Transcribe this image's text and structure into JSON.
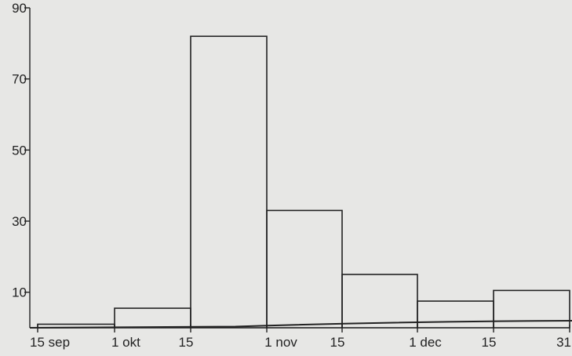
{
  "chart_data": {
    "type": "bar",
    "title": "",
    "xlabel": "",
    "ylabel": "",
    "ylim": [
      0,
      90
    ],
    "y_ticks": [
      "10",
      "30",
      "50",
      "70",
      "90"
    ],
    "y_tick_values": [
      10,
      30,
      50,
      70,
      90
    ],
    "x_tick_labels": [
      "15 sep",
      "1 okt",
      "15",
      "1 nov",
      "15",
      "1 dec",
      "15",
      "31"
    ],
    "categories": [
      "15 sep – 1 okt",
      "1 okt – 15 okt",
      "15 okt – 1 nov",
      "1 nov – 15 nov",
      "15 nov – 1 dec",
      "1 dec – 15 dec",
      "15 dec – 31 dec"
    ],
    "values": [
      1,
      5.5,
      82,
      33,
      15,
      7.5,
      10.5
    ],
    "grid": false,
    "bar_fill": "none",
    "stroke_color": "#222222",
    "background_color": "#e7e7e5"
  }
}
